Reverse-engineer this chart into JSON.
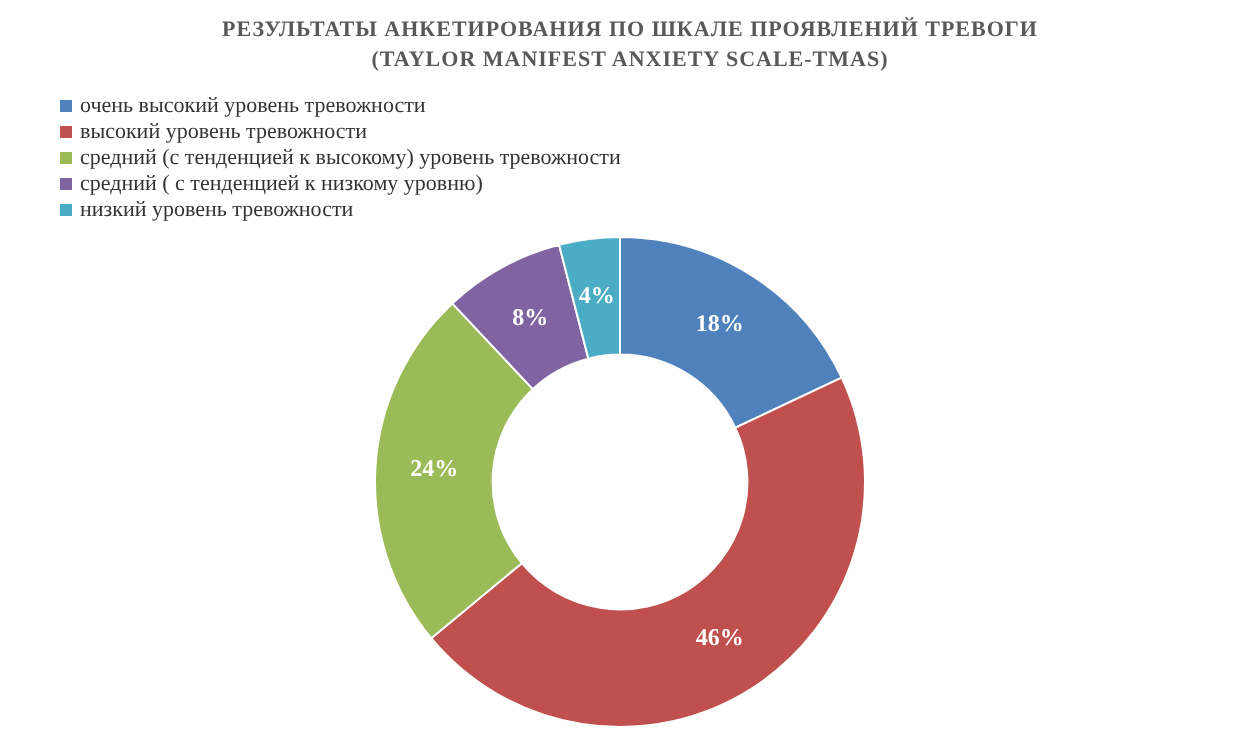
{
  "chart_data": {
    "type": "donut",
    "title": "РЕЗУЛЬТАТЫ АНКЕТИРОВАНИЯ ПО ШКАЛЕ ПРОЯВЛЕНИЙ ТРЕВОГИ\n(TAYLOR MANIFEST ANXIETY SCALE-TMAS)",
    "categories": [
      "очень высокий уровень тревожности",
      "высокий уровень тревожности",
      "средний (с тенденцией к высокому) уровень тревожности",
      "средний ( с тенденцией к низкому уровню)",
      "низкий уровень тревожности"
    ],
    "values": [
      18,
      46,
      24,
      8,
      4
    ],
    "colors": [
      "#4f81bd",
      "#c0504d",
      "#9bbb59",
      "#8064a2",
      "#4bacc6"
    ],
    "value_labels": [
      "18%",
      "46%",
      "24%",
      "8%",
      "4%"
    ],
    "legend": "top left"
  }
}
